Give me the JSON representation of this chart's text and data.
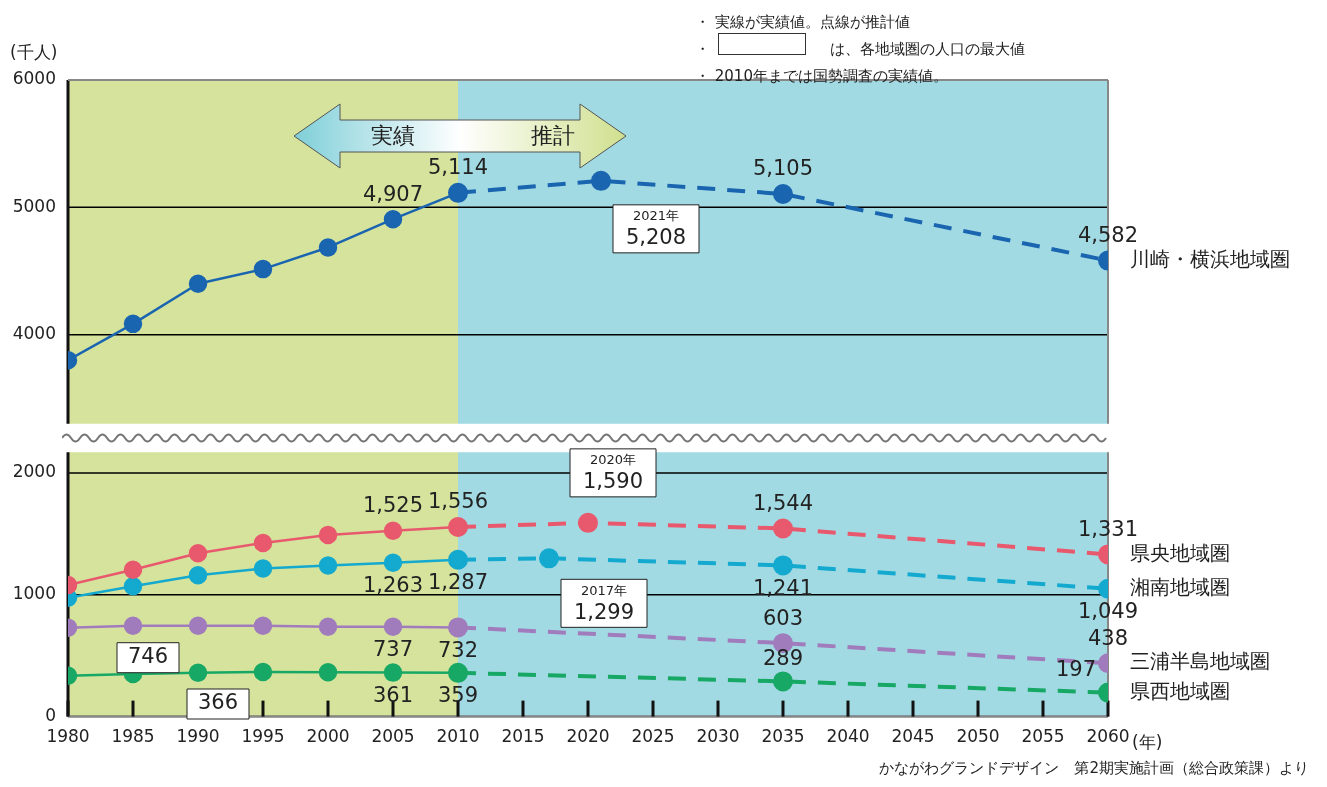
{
  "chart_data": [
    {
      "type": "line",
      "ylabel": "(千人)",
      "xlim": [
        1980,
        2060
      ],
      "xticks": [
        1980,
        1985,
        1990,
        1995,
        2000,
        2005,
        2010,
        2015,
        2020,
        2025,
        2030,
        2035,
        2040,
        2045,
        2050,
        2055,
        2060
      ],
      "ylim": [
        3300,
        6000
      ],
      "yticks": [
        4000,
        5000,
        6000
      ],
      "tick_labels": "y",
      "grid": "y",
      "legend": false,
      "marker": "circle",
      "bands": [
        {
          "axis": "x",
          "from": 1980,
          "to": 2010,
          "label": "実績",
          "color": "#d6e39c"
        },
        {
          "axis": "x",
          "from": 2010,
          "to": 2060,
          "label": "推計",
          "color": "#a2dae3"
        }
      ],
      "annotations": [
        "・ 実線が実績値。点線が推計値",
        "・　　　　　　　　は、各地域圏の人口の最大値",
        "・ 2010年までは国勢調査の実績値。",
        {
          "text": "2021年\n5,208",
          "x": 2021,
          "y": 5208
        }
      ],
      "series": [
        {
          "color": "#1a65b0",
          "line_style": "solid",
          "x": [
            1980,
            1985,
            1990,
            1995,
            2000,
            2005,
            2010
          ],
          "values": [
            3800,
            4085,
            4400,
            4515,
            4685,
            4907,
            5114
          ],
          "value_labels": [
            null,
            null,
            null,
            null,
            null,
            "4,907",
            "5,114"
          ]
        },
        {
          "name": "川崎・横浜地域圏",
          "color": "#1a65b0",
          "line_style": "dashed",
          "x": [
            2010,
            2021,
            2035,
            2060
          ],
          "values": [
            5114,
            5208,
            5105,
            4582
          ],
          "value_labels": [
            null,
            null,
            "5,105",
            "4,582"
          ]
        }
      ]
    },
    {
      "type": "line",
      "xlabel": "(年)",
      "xlim": [
        1980,
        2060
      ],
      "xticks": [
        1980,
        1985,
        1990,
        1995,
        2000,
        2005,
        2010,
        2015,
        2020,
        2025,
        2030,
        2035,
        2040,
        2045,
        2050,
        2055,
        2060
      ],
      "ylim": [
        0,
        2170
      ],
      "yticks": [
        0,
        1000,
        2000
      ],
      "grid": "y",
      "legend": false,
      "marker": "circle",
      "bands": [
        {
          "axis": "x",
          "from": 1980,
          "to": 2010,
          "color": "#d6e39c"
        },
        {
          "axis": "x",
          "from": 2010,
          "to": 2060,
          "color": "#a2dae3"
        }
      ],
      "annotations": [
        {
          "text": "2020年\n1,590",
          "x": 2020,
          "y": 1590
        },
        {
          "text": "2017年\n1,299",
          "x": 2017,
          "y": 1299
        },
        {
          "text": "746",
          "x": 1990,
          "y": 746
        },
        {
          "text": "366",
          "x": 1995,
          "y": 366
        },
        "かながわグランドデザイン　第2期実施計画（総合政策課）より"
      ],
      "series": [
        {
          "color": "#e8596e",
          "line_style": "solid",
          "x": [
            1980,
            1985,
            1990,
            1995,
            2000,
            2005,
            2010
          ],
          "values": [
            1080,
            1205,
            1340,
            1425,
            1490,
            1525,
            1556
          ],
          "value_labels": [
            null,
            null,
            null,
            null,
            null,
            "1,525",
            "1,556"
          ]
        },
        {
          "name": "県央地域圏",
          "color": "#e8596e",
          "line_style": "dashed",
          "x": [
            2010,
            2020,
            2035,
            2060
          ],
          "values": [
            1556,
            1590,
            1544,
            1331
          ],
          "value_labels": [
            null,
            null,
            "1,544",
            "1,331"
          ]
        },
        {
          "color": "#14a9cf",
          "line_style": "solid",
          "x": [
            1980,
            1985,
            1990,
            1995,
            2000,
            2005,
            2010
          ],
          "values": [
            975,
            1070,
            1160,
            1215,
            1240,
            1263,
            1287
          ],
          "value_labels": [
            null,
            null,
            null,
            null,
            null,
            "1,263",
            "1,287"
          ]
        },
        {
          "name": "湘南地域圏",
          "color": "#14a9cf",
          "line_style": "dashed",
          "x": [
            2010,
            2017,
            2035,
            2060
          ],
          "values": [
            1287,
            1299,
            1241,
            1049
          ],
          "value_labels": [
            null,
            null,
            "1,241",
            "1,049"
          ]
        },
        {
          "color": "#a17cbd",
          "line_style": "solid",
          "x": [
            1980,
            1985,
            1990,
            1995,
            2000,
            2005,
            2010
          ],
          "values": [
            730,
            745,
            746,
            745,
            738,
            737,
            732
          ],
          "value_labels": [
            null,
            null,
            null,
            null,
            null,
            "737",
            "732"
          ]
        },
        {
          "name": "三浦半島地域圏",
          "color": "#a17cbd",
          "line_style": "dashed",
          "x": [
            2010,
            2035,
            2060
          ],
          "values": [
            732,
            603,
            438
          ],
          "value_labels": [
            null,
            "603",
            "438"
          ]
        },
        {
          "color": "#18a866",
          "line_style": "solid",
          "x": [
            1980,
            1985,
            1990,
            1995,
            2000,
            2005,
            2010
          ],
          "values": [
            335,
            350,
            360,
            366,
            364,
            361,
            359
          ],
          "value_labels": [
            null,
            null,
            null,
            null,
            null,
            "361",
            "359"
          ]
        },
        {
          "name": "県西地域圏",
          "color": "#18a866",
          "line_style": "dashed",
          "x": [
            2010,
            2035,
            2060
          ],
          "values": [
            359,
            289,
            197
          ],
          "value_labels": [
            null,
            "289",
            "197"
          ]
        }
      ]
    }
  ]
}
